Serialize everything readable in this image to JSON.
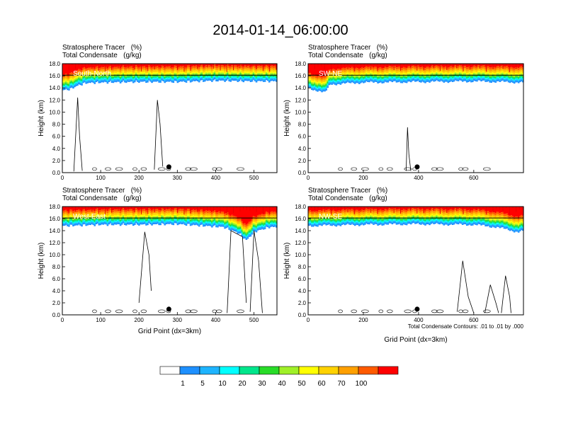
{
  "title": "2014-01-14_06:00:00",
  "field_labels": {
    "tracer": "Stratosphere Tracer   (%)",
    "condensate": "Total Condensate   (g/kg)"
  },
  "ylabel": "Height (km)",
  "xlabel": "Grid Point (dx=3km)",
  "footnote": "Total Condensate Contours: .01 to .01 by .000",
  "colors": {
    "levels": [
      "#ffffff",
      "#1e90ff",
      "#1eb4ff",
      "#00ffff",
      "#00e68c",
      "#28dc28",
      "#a0f028",
      "#ffff00",
      "#ffd200",
      "#ffa000",
      "#ff5a00",
      "#ff0000"
    ]
  },
  "legend": {
    "labels": [
      "1",
      "5",
      "10",
      "20",
      "30",
      "40",
      "50",
      "60",
      "70",
      "100"
    ]
  },
  "chart_data": [
    {
      "type": "heatmap",
      "panel": "South-North",
      "xlim": [
        0,
        560
      ],
      "ylim": [
        0,
        18
      ],
      "xticks": [
        "0",
        "100",
        "200",
        "300",
        "400",
        "500"
      ],
      "xtick_values": [
        0,
        100,
        200,
        300,
        400,
        500
      ],
      "yticks": [
        "0.0",
        "2.0",
        "4.0",
        "6.0",
        "8.0",
        "10.0",
        "12.0",
        "14.0",
        "16.0",
        "18.0"
      ],
      "tropopause_x": [
        0,
        20,
        40,
        60,
        100,
        200,
        300,
        400,
        500,
        560
      ],
      "tropopause_km": [
        13.6,
        13.8,
        14.4,
        14.8,
        14.9,
        15.0,
        15.0,
        15.2,
        15.1,
        15.1
      ],
      "marker_x": 278
    },
    {
      "type": "heatmap",
      "panel": "SW-NE",
      "xlim": [
        0,
        780
      ],
      "ylim": [
        0,
        18
      ],
      "xticks": [
        "0",
        "200",
        "400",
        "600"
      ],
      "xtick_values": [
        0,
        200,
        400,
        600
      ],
      "yticks": [
        "0.0",
        "2.0",
        "4.0",
        "6.0",
        "8.0",
        "10.0",
        "12.0",
        "14.0",
        "16.0",
        "18.0"
      ],
      "tropopause_x": [
        0,
        30,
        60,
        80,
        200,
        400,
        600,
        700,
        780
      ],
      "tropopause_km": [
        14.0,
        13.6,
        13.2,
        14.6,
        14.9,
        15.0,
        15.1,
        15.0,
        14.9
      ],
      "marker_x": 395
    },
    {
      "type": "heatmap",
      "panel": "West-East",
      "xlim": [
        0,
        560
      ],
      "ylim": [
        0,
        18
      ],
      "xticks": [
        "0",
        "100",
        "200",
        "300",
        "400",
        "500"
      ],
      "xtick_values": [
        0,
        100,
        200,
        300,
        400,
        500
      ],
      "yticks": [
        "0.0",
        "2.0",
        "4.0",
        "6.0",
        "8.0",
        "10.0",
        "12.0",
        "14.0",
        "16.0",
        "18.0"
      ],
      "tropopause_x": [
        0,
        100,
        200,
        300,
        420,
        460,
        480,
        500,
        540,
        560
      ],
      "tropopause_km": [
        14.8,
        15.0,
        15.0,
        15.1,
        14.6,
        13.6,
        12.4,
        13.8,
        14.6,
        14.6
      ],
      "marker_x": 278
    },
    {
      "type": "heatmap",
      "panel": "NW-SE",
      "xlim": [
        0,
        780
      ],
      "ylim": [
        0,
        18
      ],
      "xticks": [
        "0",
        "200",
        "400",
        "600"
      ],
      "xtick_values": [
        0,
        200,
        400,
        600
      ],
      "yticks": [
        "0.0",
        "2.0",
        "4.0",
        "6.0",
        "8.0",
        "10.0",
        "12.0",
        "14.0",
        "16.0",
        "18.0"
      ],
      "tropopause_x": [
        0,
        200,
        400,
        600,
        680,
        720,
        760,
        780
      ],
      "tropopause_km": [
        14.8,
        15.0,
        15.1,
        15.0,
        14.6,
        14.2,
        13.8,
        14.0
      ],
      "marker_x": 395
    }
  ]
}
